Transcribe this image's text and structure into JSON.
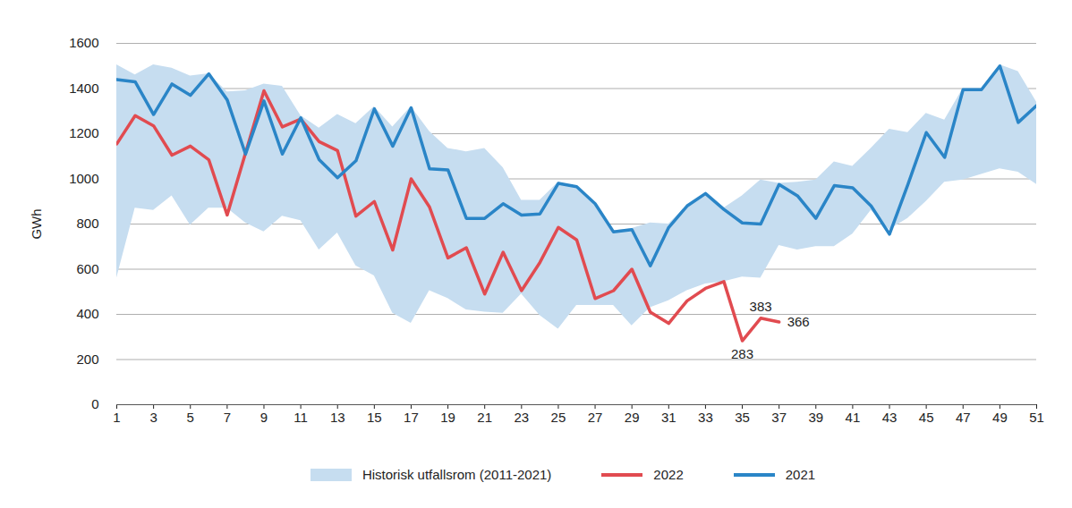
{
  "chart_data": {
    "type": "line",
    "y_label": "GWh",
    "x": [
      1,
      2,
      3,
      4,
      5,
      6,
      7,
      8,
      9,
      10,
      11,
      12,
      13,
      14,
      15,
      16,
      17,
      18,
      19,
      20,
      21,
      22,
      23,
      24,
      25,
      26,
      27,
      28,
      29,
      30,
      31,
      32,
      33,
      34,
      35,
      36,
      37,
      38,
      39,
      40,
      41,
      42,
      43,
      44,
      45,
      46,
      47,
      48,
      49,
      50,
      51
    ],
    "xlim": [
      1,
      51
    ],
    "xticks": [
      1,
      3,
      5,
      7,
      9,
      11,
      13,
      15,
      17,
      19,
      21,
      23,
      25,
      27,
      29,
      31,
      33,
      35,
      37,
      39,
      41,
      43,
      45,
      47,
      49,
      51
    ],
    "ylim": [
      0,
      1600
    ],
    "yticks": [
      0,
      200,
      400,
      600,
      800,
      1000,
      1200,
      1400,
      1600
    ],
    "grid": true,
    "legend": "bottom",
    "series": [
      {
        "name": "Historisk utfallsrom (2011-2021)",
        "type": "area",
        "color": "#c6ddf0",
        "lower": [
          560,
          870,
          860,
          925,
          795,
          870,
          870,
          805,
          765,
          835,
          815,
          685,
          760,
          615,
          570,
          405,
          360,
          505,
          470,
          420,
          410,
          405,
          490,
          395,
          335,
          440,
          440,
          440,
          350,
          430,
          460,
          505,
          535,
          545,
          565,
          560,
          705,
          685,
          700,
          700,
          755,
          860,
          775,
          825,
          900,
          985,
          995,
          1020,
          1045,
          1030,
          975
        ],
        "upper": [
          1505,
          1460,
          1505,
          1490,
          1455,
          1465,
          1385,
          1390,
          1420,
          1410,
          1280,
          1225,
          1285,
          1245,
          1320,
          1230,
          1320,
          1210,
          1135,
          1120,
          1135,
          1050,
          905,
          905,
          985,
          965,
          890,
          770,
          780,
          805,
          800,
          880,
          935,
          870,
          925,
          995,
          980,
          985,
          995,
          1075,
          1055,
          1135,
          1220,
          1205,
          1290,
          1260,
          1400,
          1400,
          1505,
          1475,
          1340
        ]
      },
      {
        "name": "2022",
        "type": "line",
        "color": "#e14b50",
        "values": [
          1155,
          1280,
          1235,
          1105,
          1145,
          1085,
          840,
          1115,
          1390,
          1230,
          1265,
          1165,
          1125,
          835,
          900,
          685,
          1000,
          875,
          650,
          695,
          490,
          675,
          505,
          630,
          785,
          730,
          470,
          505,
          600,
          410,
          360,
          460,
          515,
          545,
          283,
          383,
          366,
          null,
          null,
          null,
          null,
          null,
          null,
          null,
          null,
          null,
          null,
          null,
          null,
          null,
          null
        ],
        "annotations": [
          {
            "x": 36,
            "y": 383,
            "text": "383"
          },
          {
            "x": 37,
            "y": 366,
            "text": "366"
          },
          {
            "x": 35,
            "y": 283,
            "text": "283"
          }
        ]
      },
      {
        "name": "2021",
        "type": "line",
        "color": "#2a85c7",
        "values": [
          1440,
          1430,
          1285,
          1420,
          1370,
          1465,
          1350,
          1110,
          1345,
          1110,
          1270,
          1085,
          1005,
          1080,
          1310,
          1145,
          1315,
          1045,
          1040,
          825,
          825,
          890,
          840,
          845,
          980,
          965,
          890,
          765,
          775,
          615,
          785,
          880,
          935,
          865,
          805,
          800,
          975,
          925,
          825,
          970,
          960,
          880,
          755,
          975,
          1205,
          1095,
          1395,
          1395,
          1500,
          1250,
          1325
        ]
      }
    ]
  }
}
